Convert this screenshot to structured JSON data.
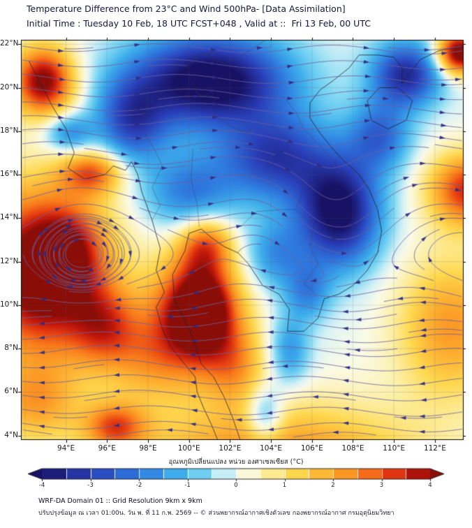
{
  "header": {
    "title_line1": "Temperature Difference from 23°C and Wind 500hPa- [Data Assimilation]",
    "title_line2": "Initial Time : Tuesday 10 Feb, 18 UTC FCST+048 , Valid at ::  Fri 13 Feb, 00 UTC"
  },
  "footer": {
    "line1": "WRF-DA Domain 01 :: Grid Resolution 9km x 9km",
    "line2": "ปรับปรุงข้อมูล ณ เวลา 01:00น. วัน พ. ที่ 11 ก.พ. 2569 -- © ส่วนพยากรณ์อากาศเชิงตัวเลข กองพยากรณ์อากาศ กรมอุตุนิยมวิทยา"
  },
  "chart_data": {
    "type": "heatmap",
    "title": "Temperature Difference from 23°C and Wind 500hPa- [Data Assimilation]",
    "subtitle": "Initial Time : Tuesday 10 Feb, 18 UTC FCST+048 , Valid at ::  Fri 13 Feb, 00 UTC",
    "units": "°C",
    "value_range": [
      -4,
      4
    ],
    "domain": {
      "lon_min": 91.8,
      "lon_max": 113.4,
      "lat_min": 3.8,
      "lat_max": 22.2
    },
    "x_ticks": [
      {
        "value": 94,
        "label": "94°E"
      },
      {
        "value": 96,
        "label": "96°E"
      },
      {
        "value": 98,
        "label": "98°E"
      },
      {
        "value": 100,
        "label": "100°E"
      },
      {
        "value": 102,
        "label": "102°E"
      },
      {
        "value": 104,
        "label": "104°E"
      },
      {
        "value": 106,
        "label": "106°E"
      },
      {
        "value": 108,
        "label": "108°E"
      },
      {
        "value": 110,
        "label": "110°E"
      },
      {
        "value": 112,
        "label": "112°E"
      }
    ],
    "y_ticks": [
      {
        "value": 22,
        "label": "22°N"
      },
      {
        "value": 20,
        "label": "20°N"
      },
      {
        "value": 18,
        "label": "18°N"
      },
      {
        "value": 16,
        "label": "16°N"
      },
      {
        "value": 14,
        "label": "14°N"
      },
      {
        "value": 12,
        "label": "12°N"
      },
      {
        "value": 10,
        "label": "10°N"
      },
      {
        "value": 8,
        "label": "8°N"
      },
      {
        "value": 6,
        "label": "6°N"
      },
      {
        "value": 4,
        "label": "4°N"
      }
    ],
    "colorbar": {
      "title": "อุณหภูมิเปลี่ยนแปลง หน่วย องศาเซลเซียส (°C)",
      "ticks": [
        -4,
        -3,
        -2,
        -1,
        0,
        1,
        2,
        3,
        4
      ],
      "stops": [
        {
          "v": -4.0,
          "c": "#181264"
        },
        {
          "v": -3.0,
          "c": "#2a3eb8"
        },
        {
          "v": -2.0,
          "c": "#2f7ae0"
        },
        {
          "v": -1.2,
          "c": "#3fb0ec"
        },
        {
          "v": -0.6,
          "c": "#7fd8f4"
        },
        {
          "v": -0.15,
          "c": "#d8f3f6"
        },
        {
          "v": 0.15,
          "c": "#fbfbe8"
        },
        {
          "v": 0.6,
          "c": "#fdf0a8"
        },
        {
          "v": 1.2,
          "c": "#ffd94f"
        },
        {
          "v": 2.0,
          "c": "#fda92c"
        },
        {
          "v": 2.6,
          "c": "#f97c1c"
        },
        {
          "v": 3.1,
          "c": "#ea4413"
        },
        {
          "v": 3.6,
          "c": "#c2170c"
        },
        {
          "v": 4.0,
          "c": "#8a0e07"
        }
      ]
    },
    "temperature_features": [
      {
        "name": "warm-northwest-blob",
        "lon": 92.9,
        "lat": 20.3,
        "amp": 4.2,
        "sx": 1.5,
        "sy": 1.6
      },
      {
        "name": "warm-west-main",
        "lon": 92.8,
        "lat": 11.5,
        "amp": 5.0,
        "sx": 3.2,
        "sy": 3.8
      },
      {
        "name": "warm-west-core",
        "lon": 94.2,
        "lat": 12.6,
        "amp": 1.2,
        "sx": 1.5,
        "sy": 1.8
      },
      {
        "name": "warm-west-finger",
        "lon": 95.3,
        "lat": 16.1,
        "amp": 2.6,
        "sx": 1.5,
        "sy": 1.0
      },
      {
        "name": "warm-west-south-lobe",
        "lon": 95.9,
        "lat": 9.0,
        "amp": 2.2,
        "sx": 1.7,
        "sy": 1.9
      },
      {
        "name": "warm-southwest-blob",
        "lon": 96.4,
        "lat": 4.4,
        "amp": 2.6,
        "sx": 1.5,
        "sy": 1.1
      },
      {
        "name": "warm-southwest-edge",
        "lon": 92.5,
        "lat": 5.5,
        "amp": 1.8,
        "sx": 2.2,
        "sy": 1.8
      },
      {
        "name": "warm-central-main",
        "lon": 100.4,
        "lat": 9.6,
        "amp": 5.0,
        "sx": 2.1,
        "sy": 2.6
      },
      {
        "name": "warm-central-core",
        "lon": 100.8,
        "lat": 9.9,
        "amp": 1.1,
        "sx": 1.1,
        "sy": 1.5
      },
      {
        "name": "warm-central-tongue",
        "lon": 100.8,
        "lat": 12.8,
        "amp": 2.4,
        "sx": 1.3,
        "sy": 1.3
      },
      {
        "name": "warm-central-east-lobe",
        "lon": 102.3,
        "lat": 7.2,
        "amp": 1.6,
        "sx": 1.5,
        "sy": 1.8
      },
      {
        "name": "warm-south-broad",
        "lon": 104.0,
        "lat": 3.0,
        "amp": 2.4,
        "sx": 7.0,
        "sy": 2.6
      },
      {
        "name": "warm-bridge",
        "lon": 98.0,
        "lat": 7.5,
        "amp": 1.5,
        "sx": 2.0,
        "sy": 2.0
      },
      {
        "name": "warm-east-mid",
        "lon": 113.6,
        "lat": 15.3,
        "amp": 3.4,
        "sx": 1.9,
        "sy": 1.7
      },
      {
        "name": "warm-east-south",
        "lon": 112.8,
        "lat": 9.0,
        "amp": 2.2,
        "sx": 2.6,
        "sy": 3.2
      },
      {
        "name": "warm-northeast-corner",
        "lon": 113.2,
        "lat": 21.6,
        "amp": 4.6,
        "sx": 1.1,
        "sy": 1.0
      },
      {
        "name": "cold-north-main",
        "lon": 101.0,
        "lat": 20.3,
        "amp": -4.6,
        "sx": 3.8,
        "sy": 2.1
      },
      {
        "name": "cold-east-main",
        "lon": 107.3,
        "lat": 14.3,
        "amp": -4.3,
        "sx": 2.0,
        "sy": 2.5
      },
      {
        "name": "cold-connector",
        "lon": 104.2,
        "lat": 16.8,
        "amp": -3.0,
        "sx": 2.6,
        "sy": 2.0
      },
      {
        "name": "cold-northeast-blob",
        "lon": 110.6,
        "lat": 20.6,
        "amp": -3.4,
        "sx": 1.7,
        "sy": 1.5
      },
      {
        "name": "cold-northwest",
        "lon": 97.2,
        "lat": 18.4,
        "amp": -2.6,
        "sx": 1.7,
        "sy": 1.9
      },
      {
        "name": "cold-central-thailand",
        "lon": 100.0,
        "lat": 15.2,
        "amp": -2.0,
        "sx": 2.2,
        "sy": 1.8
      },
      {
        "name": "cold-east-central",
        "lon": 104.2,
        "lat": 12.3,
        "amp": -1.6,
        "sx": 1.5,
        "sy": 1.6
      },
      {
        "name": "cold-west-pinch",
        "lon": 94.1,
        "lat": 17.9,
        "amp": -1.9,
        "sx": 1.2,
        "sy": 0.9
      },
      {
        "name": "cool-south-band-a",
        "lon": 103.7,
        "lat": 4.9,
        "amp": -1.9,
        "sx": 0.9,
        "sy": 1.3
      },
      {
        "name": "cool-south-band-b",
        "lon": 104.9,
        "lat": 7.9,
        "amp": -1.6,
        "sx": 1.0,
        "sy": 1.6
      },
      {
        "name": "cool-south-band-c",
        "lon": 105.8,
        "lat": 10.6,
        "amp": -1.6,
        "sx": 1.1,
        "sy": 1.3
      },
      {
        "name": "cold-east-coast",
        "lon": 109.3,
        "lat": 17.8,
        "amp": -2.2,
        "sx": 1.5,
        "sy": 1.6
      }
    ],
    "wind": {
      "level": "500hPa",
      "base_u": 1.0,
      "shear_lat": 12.4,
      "shear_width": 3.0,
      "wave_amp": 0.14,
      "wave_length": 8.5,
      "vortices": [
        {
          "name": "anticyclone-west",
          "lon": 94.6,
          "lat": 12.3,
          "strength": 0.85,
          "radius": 2.0
        },
        {
          "name": "cyclonic-bend-east",
          "lon": 106.9,
          "lat": 14.2,
          "strength": -0.35,
          "radius": 2.6
        }
      ]
    },
    "basemap": {
      "coastlines": [
        [
          [
            92.2,
            21.2
          ],
          [
            92.7,
            20.3
          ],
          [
            93.3,
            19.2
          ],
          [
            94.0,
            18.1
          ],
          [
            94.4,
            17.0
          ],
          [
            94.1,
            16.3
          ],
          [
            94.9,
            15.8
          ],
          [
            95.9,
            16.0
          ],
          [
            96.3,
            16.4
          ],
          [
            96.9,
            16.2
          ],
          [
            97.2,
            16.6
          ],
          [
            97.5,
            16.0
          ],
          [
            97.7,
            15.2
          ],
          [
            98.2,
            13.9
          ],
          [
            98.6,
            12.6
          ],
          [
            98.4,
            11.6
          ],
          [
            98.8,
            10.6
          ],
          [
            98.4,
            9.9
          ],
          [
            98.7,
            8.9
          ],
          [
            99.1,
            8.1
          ],
          [
            99.7,
            7.4
          ],
          [
            100.3,
            6.7
          ],
          [
            100.4,
            6.0
          ],
          [
            100.7,
            5.3
          ],
          [
            101.1,
            4.5
          ],
          [
            101.4,
            3.8
          ]
        ],
        [
          [
            102.5,
            3.8
          ],
          [
            102.1,
            4.9
          ],
          [
            101.7,
            5.8
          ],
          [
            101.2,
            6.7
          ],
          [
            100.6,
            7.3
          ],
          [
            100.3,
            8.2
          ],
          [
            99.9,
            9.1
          ],
          [
            99.3,
            10.2
          ],
          [
            99.2,
            11.4
          ],
          [
            99.8,
            12.5
          ],
          [
            100.0,
            13.3
          ],
          [
            100.6,
            13.5
          ],
          [
            101.1,
            13.1
          ],
          [
            101.7,
            12.7
          ],
          [
            102.4,
            12.4
          ],
          [
            102.9,
            11.9
          ],
          [
            103.6,
            10.9
          ],
          [
            104.4,
            10.5
          ],
          [
            104.9,
            9.8
          ],
          [
            104.8,
            8.8
          ],
          [
            105.6,
            8.8
          ],
          [
            106.3,
            9.4
          ],
          [
            106.6,
            10.3
          ],
          [
            107.3,
            10.5
          ],
          [
            108.0,
            10.9
          ],
          [
            108.7,
            11.6
          ],
          [
            109.2,
            12.4
          ],
          [
            109.4,
            13.4
          ],
          [
            109.2,
            14.4
          ],
          [
            108.8,
            15.3
          ],
          [
            108.3,
            16.0
          ],
          [
            107.6,
            16.6
          ],
          [
            107.0,
            17.2
          ],
          [
            106.4,
            17.9
          ],
          [
            105.9,
            18.6
          ],
          [
            105.9,
            19.3
          ],
          [
            106.4,
            19.9
          ],
          [
            107.0,
            20.3
          ],
          [
            107.8,
            20.9
          ],
          [
            108.3,
            21.5
          ],
          [
            109.2,
            21.5
          ],
          [
            110.0,
            21.4
          ],
          [
            110.4,
            20.9
          ],
          [
            110.4,
            20.2
          ],
          [
            110.7,
            20.6
          ],
          [
            111.3,
            21.3
          ],
          [
            112.2,
            21.7
          ],
          [
            113.4,
            21.9
          ]
        ],
        [
          [
            108.7,
            19.4
          ],
          [
            109.3,
            20.0
          ],
          [
            110.2,
            20.0
          ],
          [
            110.9,
            19.4
          ],
          [
            110.6,
            18.5
          ],
          [
            109.7,
            18.1
          ],
          [
            108.9,
            18.5
          ],
          [
            108.7,
            19.4
          ]
        ]
      ],
      "borders": [
        [
          [
            97.8,
            19.9
          ],
          [
            98.0,
            18.9
          ],
          [
            97.7,
            18.1
          ],
          [
            98.3,
            17.2
          ],
          [
            98.7,
            16.4
          ],
          [
            98.2,
            15.4
          ],
          [
            98.6,
            14.6
          ],
          [
            98.2,
            13.9
          ]
        ],
        [
          [
            100.1,
            20.4
          ],
          [
            100.4,
            19.7
          ],
          [
            101.2,
            19.6
          ],
          [
            101.3,
            18.7
          ],
          [
            102.1,
            18.2
          ],
          [
            102.8,
            17.9
          ],
          [
            103.4,
            18.4
          ],
          [
            104.0,
            18.3
          ],
          [
            104.8,
            17.6
          ],
          [
            104.8,
            16.7
          ],
          [
            105.6,
            15.8
          ],
          [
            105.4,
            14.8
          ],
          [
            105.2,
            14.4
          ]
        ],
        [
          [
            102.5,
            13.6
          ],
          [
            103.3,
            14.3
          ],
          [
            104.6,
            14.4
          ],
          [
            105.2,
            14.4
          ]
        ],
        [
          [
            105.2,
            14.4
          ],
          [
            106.1,
            13.7
          ],
          [
            105.9,
            12.7
          ],
          [
            106.3,
            11.9
          ],
          [
            105.6,
            11.0
          ],
          [
            106.2,
            10.5
          ]
        ],
        [
          [
            104.6,
            19.6
          ],
          [
            105.2,
            18.9
          ],
          [
            105.6,
            18.1
          ],
          [
            106.4,
            17.3
          ],
          [
            107.0,
            16.7
          ],
          [
            107.5,
            16.0
          ],
          [
            107.2,
            15.6
          ]
        ],
        [
          [
            100.7,
            21.6
          ],
          [
            101.7,
            21.1
          ],
          [
            102.8,
            21.6
          ],
          [
            103.9,
            22.3
          ]
        ],
        [
          [
            100.1,
            20.4
          ],
          [
            99.9,
            20.9
          ],
          [
            100.5,
            21.5
          ],
          [
            101.2,
            21.6
          ]
        ],
        [
          [
            100.2,
            17.2
          ],
          [
            100.1,
            15.8
          ],
          [
            100.4,
            14.6
          ],
          [
            100.5,
            13.6
          ]
        ]
      ]
    }
  }
}
